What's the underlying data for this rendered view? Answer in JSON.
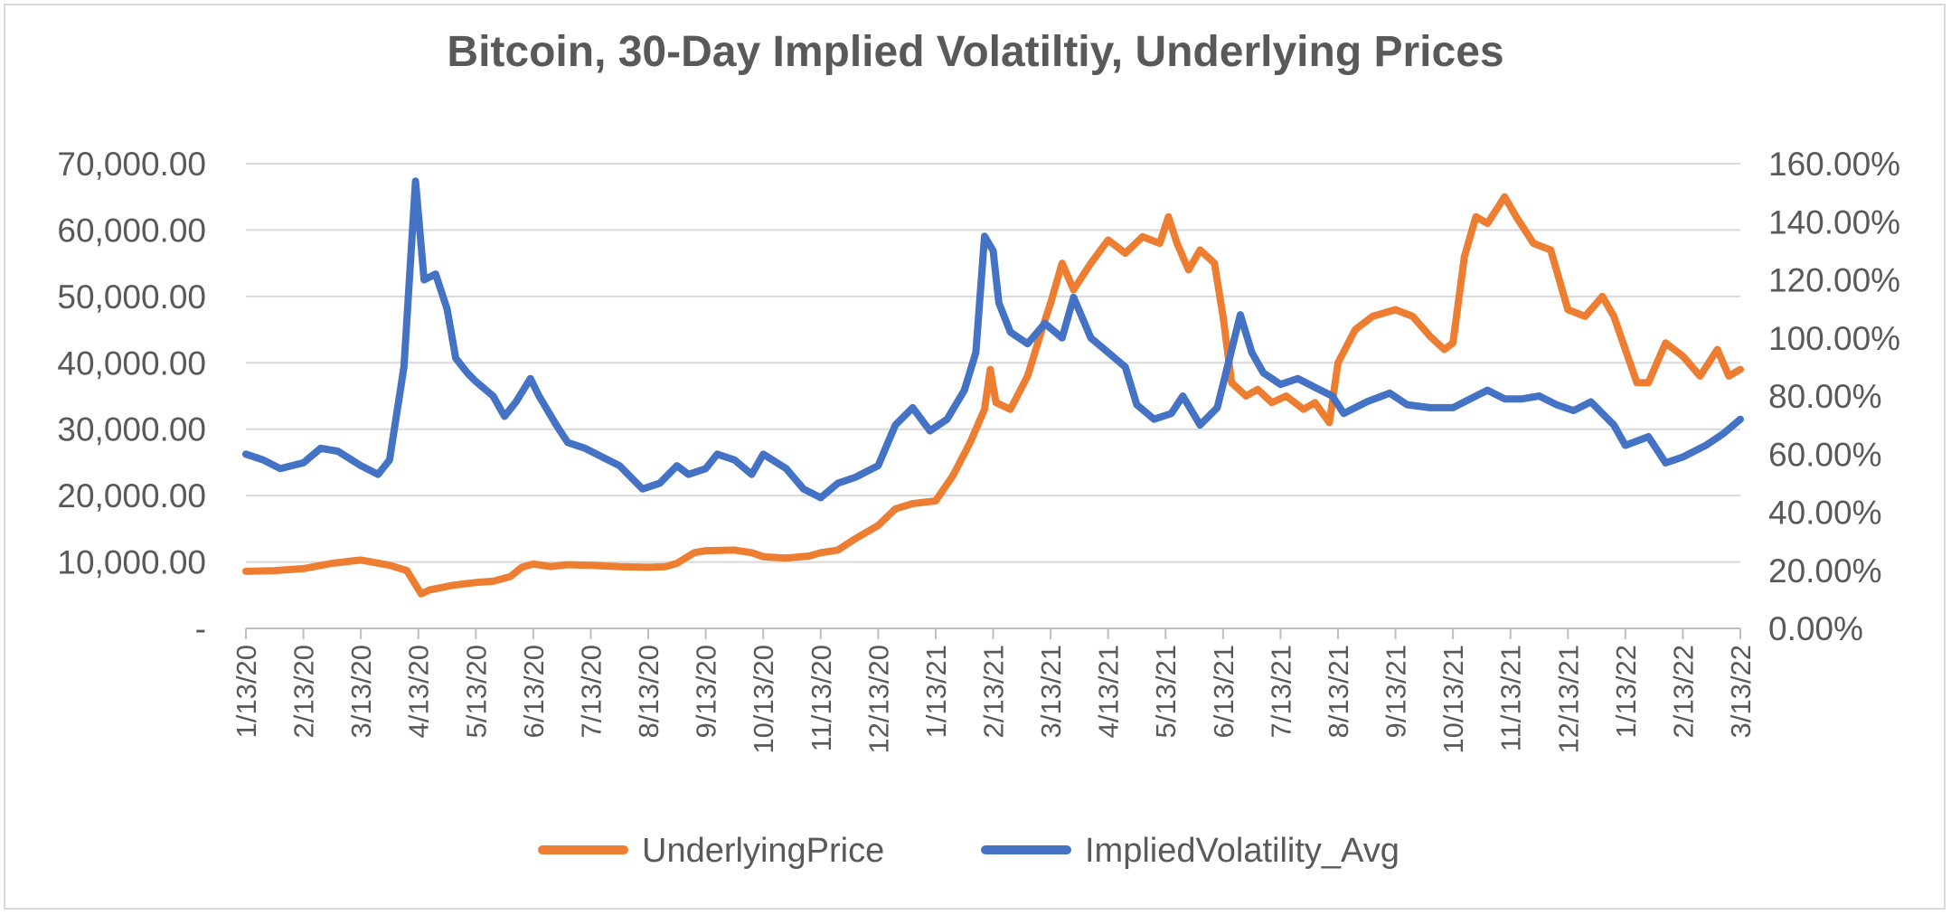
{
  "chart_data": {
    "type": "line",
    "title": "Bitcoin, 30-Day Implied Volatiltiy, Underlying Prices",
    "xlabel": "",
    "ylabel": "",
    "y_left_ticks": [
      "-",
      "10,000.00",
      "20,000.00",
      "30,000.00",
      "40,000.00",
      "50,000.00",
      "60,000.00",
      "70,000.00"
    ],
    "y_right_ticks": [
      "0.00%",
      "20.00%",
      "40.00%",
      "60.00%",
      "80.00%",
      "100.00%",
      "120.00%",
      "140.00%",
      "160.00%"
    ],
    "ylim_left": [
      0,
      70000
    ],
    "ylim_right": [
      0,
      1.6
    ],
    "x_tick_labels": [
      "1/13/20",
      "2/13/20",
      "3/13/20",
      "4/13/20",
      "5/13/20",
      "6/13/20",
      "7/13/20",
      "8/13/20",
      "9/13/20",
      "10/13/20",
      "11/13/20",
      "12/13/20",
      "1/13/21",
      "2/13/21",
      "3/13/21",
      "4/13/21",
      "5/13/21",
      "6/13/21",
      "7/13/21",
      "8/13/21",
      "9/13/21",
      "10/13/21",
      "11/13/21",
      "12/13/21",
      "1/13/22",
      "2/13/22",
      "3/13/22"
    ],
    "grid": true,
    "legend_position": "bottom",
    "series": [
      {
        "name": "UnderlyingPrice",
        "axis": "left",
        "color": "#ED7D31",
        "points": [
          [
            0,
            8600
          ],
          [
            0.5,
            8700
          ],
          [
            1,
            9000
          ],
          [
            1.5,
            9800
          ],
          [
            2,
            10300
          ],
          [
            2.5,
            9500
          ],
          [
            2.8,
            8700
          ],
          [
            3.05,
            5200
          ],
          [
            3.2,
            5800
          ],
          [
            3.6,
            6500
          ],
          [
            4,
            6900
          ],
          [
            4.3,
            7100
          ],
          [
            4.6,
            7800
          ],
          [
            4.8,
            9200
          ],
          [
            5,
            9700
          ],
          [
            5.3,
            9300
          ],
          [
            5.6,
            9600
          ],
          [
            6,
            9500
          ],
          [
            6.5,
            9300
          ],
          [
            7,
            9200
          ],
          [
            7.3,
            9300
          ],
          [
            7.5,
            9800
          ],
          [
            7.8,
            11400
          ],
          [
            8,
            11700
          ],
          [
            8.5,
            11800
          ],
          [
            8.8,
            11400
          ],
          [
            9,
            10800
          ],
          [
            9.4,
            10600
          ],
          [
            9.8,
            10900
          ],
          [
            10,
            11400
          ],
          [
            10.3,
            11800
          ],
          [
            10.6,
            13500
          ],
          [
            11,
            15500
          ],
          [
            11.3,
            18000
          ],
          [
            11.6,
            18800
          ],
          [
            12,
            19200
          ],
          [
            12.3,
            23000
          ],
          [
            12.6,
            28000
          ],
          [
            12.85,
            33000
          ],
          [
            12.95,
            39000
          ],
          [
            13.05,
            34000
          ],
          [
            13.3,
            33000
          ],
          [
            13.6,
            38000
          ],
          [
            13.85,
            45000
          ],
          [
            14,
            49000
          ],
          [
            14.2,
            55000
          ],
          [
            14.4,
            51000
          ],
          [
            14.7,
            55000
          ],
          [
            15,
            58500
          ],
          [
            15.3,
            56500
          ],
          [
            15.6,
            59000
          ],
          [
            15.9,
            58000
          ],
          [
            16.05,
            62000
          ],
          [
            16.2,
            58000
          ],
          [
            16.4,
            54000
          ],
          [
            16.6,
            57000
          ],
          [
            16.85,
            55000
          ],
          [
            17,
            47000
          ],
          [
            17.15,
            37000
          ],
          [
            17.4,
            35000
          ],
          [
            17.6,
            36000
          ],
          [
            17.85,
            34000
          ],
          [
            18.1,
            35000
          ],
          [
            18.4,
            33000
          ],
          [
            18.6,
            34000
          ],
          [
            18.85,
            31000
          ],
          [
            19,
            40000
          ],
          [
            19.3,
            45000
          ],
          [
            19.6,
            47000
          ],
          [
            20,
            48000
          ],
          [
            20.3,
            47000
          ],
          [
            20.6,
            44000
          ],
          [
            20.85,
            42000
          ],
          [
            21,
            43000
          ],
          [
            21.2,
            56000
          ],
          [
            21.4,
            62000
          ],
          [
            21.6,
            61000
          ],
          [
            21.9,
            65000
          ],
          [
            22.1,
            62000
          ],
          [
            22.4,
            58000
          ],
          [
            22.7,
            57000
          ],
          [
            23,
            48000
          ],
          [
            23.3,
            47000
          ],
          [
            23.6,
            50000
          ],
          [
            23.8,
            47000
          ],
          [
            24,
            42000
          ],
          [
            24.2,
            37000
          ],
          [
            24.4,
            37000
          ],
          [
            24.7,
            43000
          ],
          [
            25,
            41000
          ],
          [
            25.3,
            38000
          ],
          [
            25.6,
            42000
          ],
          [
            25.8,
            38000
          ],
          [
            26,
            39000
          ]
        ]
      },
      {
        "name": "ImpliedVolatility_Avg",
        "axis": "right",
        "color": "#4472C4",
        "points": [
          [
            0,
            0.6
          ],
          [
            0.3,
            0.58
          ],
          [
            0.6,
            0.55
          ],
          [
            1,
            0.57
          ],
          [
            1.3,
            0.62
          ],
          [
            1.6,
            0.61
          ],
          [
            2,
            0.56
          ],
          [
            2.3,
            0.53
          ],
          [
            2.5,
            0.58
          ],
          [
            2.75,
            0.9
          ],
          [
            2.95,
            1.54
          ],
          [
            3.1,
            1.2
          ],
          [
            3.3,
            1.22
          ],
          [
            3.5,
            1.1
          ],
          [
            3.65,
            0.93
          ],
          [
            3.85,
            0.88
          ],
          [
            4,
            0.85
          ],
          [
            4.3,
            0.8
          ],
          [
            4.5,
            0.73
          ],
          [
            4.7,
            0.78
          ],
          [
            4.95,
            0.86
          ],
          [
            5.1,
            0.8
          ],
          [
            5.4,
            0.7
          ],
          [
            5.6,
            0.64
          ],
          [
            5.9,
            0.62
          ],
          [
            6.2,
            0.59
          ],
          [
            6.5,
            0.56
          ],
          [
            6.9,
            0.48
          ],
          [
            7.2,
            0.5
          ],
          [
            7.5,
            0.56
          ],
          [
            7.7,
            0.53
          ],
          [
            8,
            0.55
          ],
          [
            8.2,
            0.6
          ],
          [
            8.5,
            0.58
          ],
          [
            8.8,
            0.53
          ],
          [
            9,
            0.6
          ],
          [
            9.4,
            0.55
          ],
          [
            9.7,
            0.48
          ],
          [
            10,
            0.45
          ],
          [
            10.3,
            0.5
          ],
          [
            10.6,
            0.52
          ],
          [
            11,
            0.56
          ],
          [
            11.3,
            0.7
          ],
          [
            11.6,
            0.76
          ],
          [
            11.9,
            0.68
          ],
          [
            12.2,
            0.72
          ],
          [
            12.5,
            0.82
          ],
          [
            12.7,
            0.95
          ],
          [
            12.85,
            1.35
          ],
          [
            13.0,
            1.3
          ],
          [
            13.1,
            1.12
          ],
          [
            13.3,
            1.02
          ],
          [
            13.6,
            0.98
          ],
          [
            13.9,
            1.05
          ],
          [
            14.2,
            1.0
          ],
          [
            14.4,
            1.14
          ],
          [
            14.7,
            1.0
          ],
          [
            15,
            0.95
          ],
          [
            15.3,
            0.9
          ],
          [
            15.5,
            0.77
          ],
          [
            15.8,
            0.72
          ],
          [
            16.1,
            0.74
          ],
          [
            16.3,
            0.8
          ],
          [
            16.6,
            0.7
          ],
          [
            16.9,
            0.76
          ],
          [
            17.1,
            0.92
          ],
          [
            17.3,
            1.08
          ],
          [
            17.5,
            0.95
          ],
          [
            17.7,
            0.88
          ],
          [
            18,
            0.84
          ],
          [
            18.3,
            0.86
          ],
          [
            18.6,
            0.83
          ],
          [
            18.9,
            0.8
          ],
          [
            19.1,
            0.74
          ],
          [
            19.5,
            0.78
          ],
          [
            19.9,
            0.81
          ],
          [
            20.2,
            0.77
          ],
          [
            20.6,
            0.76
          ],
          [
            21,
            0.76
          ],
          [
            21.3,
            0.79
          ],
          [
            21.6,
            0.82
          ],
          [
            21.9,
            0.79
          ],
          [
            22.2,
            0.79
          ],
          [
            22.5,
            0.8
          ],
          [
            22.8,
            0.77
          ],
          [
            23.1,
            0.75
          ],
          [
            23.4,
            0.78
          ],
          [
            23.8,
            0.7
          ],
          [
            24,
            0.63
          ],
          [
            24.4,
            0.66
          ],
          [
            24.7,
            0.57
          ],
          [
            25,
            0.59
          ],
          [
            25.4,
            0.63
          ],
          [
            25.7,
            0.67
          ],
          [
            26,
            0.72
          ]
        ]
      }
    ]
  }
}
